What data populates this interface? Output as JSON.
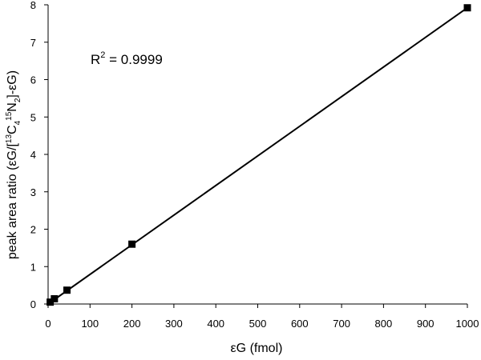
{
  "chart_data": {
    "type": "scatter",
    "xlabel": "εG (fmol)",
    "ylabel_parts": {
      "prefix": "peak area ratio (εG/[",
      "sup1": "13",
      "c": "C",
      "sub1": "4",
      "sup2": "15",
      "n": "N",
      "sub2": "2",
      "suffix": "]-εG)"
    },
    "xlim": [
      0,
      1000
    ],
    "ylim": [
      0,
      8
    ],
    "xticks": [
      0,
      100,
      200,
      300,
      400,
      500,
      600,
      700,
      800,
      900,
      1000
    ],
    "yticks": [
      0,
      1,
      2,
      3,
      4,
      5,
      6,
      7,
      8
    ],
    "grid": false,
    "legend": "none",
    "series": [
      {
        "marker": "square",
        "color": "#000000",
        "points": [
          {
            "x": 5,
            "y": 0.05
          },
          {
            "x": 15,
            "y": 0.14
          },
          {
            "x": 45,
            "y": 0.37
          },
          {
            "x": 200,
            "y": 1.6
          },
          {
            "x": 1000,
            "y": 7.92
          }
        ]
      }
    ],
    "trendline": {
      "type": "linear",
      "from": {
        "x": 0,
        "y": 0.0
      },
      "to": {
        "x": 1000,
        "y": 7.92
      }
    },
    "annotation": {
      "r_label": "R",
      "r_sup": "2",
      "r_value": " = 0.9999"
    }
  }
}
